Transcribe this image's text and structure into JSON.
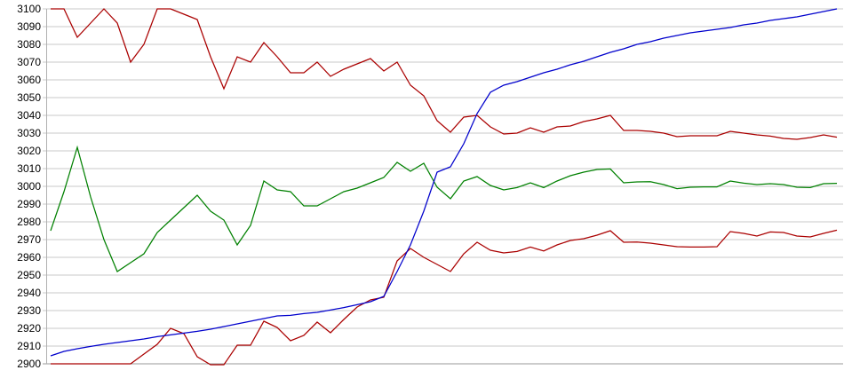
{
  "chart_data": {
    "type": "line",
    "title": "",
    "legend": "none",
    "background": "#ffffff",
    "grid": {
      "horizontal": true,
      "vertical": false,
      "color": "#c9c9c9",
      "axis_color": "#b0b0b0",
      "baseline_color": "#999999"
    },
    "x_axis": {
      "labels_visible": false,
      "points": 60
    },
    "y_axis": {
      "min": 2900,
      "max": 3100,
      "tick_step": 10,
      "tick_labels": [
        "3100",
        "3090",
        "3080",
        "3070",
        "3060",
        "3050",
        "3040",
        "3030",
        "3020",
        "3010",
        "3000",
        "2990",
        "2980",
        "2970",
        "2960",
        "2950",
        "2940",
        "2930",
        "2920",
        "2910",
        "2900"
      ]
    },
    "series": [
      {
        "name": "upper-band-red",
        "color": "#aa0000",
        "values": [
          3100,
          3100,
          3084,
          3092,
          3100,
          3092,
          3070,
          3080,
          3100,
          3100,
          3097,
          3094,
          3073,
          3055,
          3073,
          3070,
          3081,
          3073,
          3064,
          3064,
          3070,
          3062,
          3066,
          3069,
          3072,
          3065,
          3070,
          3057,
          3051,
          3037,
          3030.5,
          3039,
          3040,
          3033.5,
          3029.5,
          3030,
          3033,
          3030.5,
          3033.5,
          3034,
          3036.5,
          3038,
          3040,
          3031.5,
          3031.5,
          3031,
          3030,
          3028,
          3028.5,
          3028.5,
          3028.5,
          3031,
          3030,
          3029,
          3028.3,
          3027,
          3026.5,
          3027.5,
          3029,
          3027.7
        ]
      },
      {
        "name": "middle-green",
        "color": "#008000",
        "values": [
          2975,
          2997,
          3022,
          2994,
          2970,
          2952,
          2957,
          2962,
          2974,
          2981,
          2988,
          2995,
          2986,
          2981,
          2967,
          2978,
          3003,
          2998,
          2997,
          2989,
          2989,
          2993,
          2997,
          2999,
          3002,
          3005,
          3013.5,
          3008.5,
          3013,
          2999.5,
          2993,
          3003,
          3005.5,
          3000.5,
          2998,
          2999.3,
          3002,
          2999.3,
          3003,
          3006,
          3008,
          3009.5,
          3009.8,
          3002,
          3002.5,
          3002.6,
          3001,
          2998.7,
          2999.5,
          2999.7,
          2999.7,
          3003,
          3001.8,
          3001,
          3001.5,
          3001,
          2999.5,
          2999.3,
          3001.5,
          3001.7
        ]
      },
      {
        "name": "lower-band-red",
        "color": "#aa0000",
        "values": [
          2900,
          2900,
          2900,
          2900,
          2900,
          2900,
          2900,
          2905.5,
          2911,
          2920,
          2917,
          2904,
          2899.5,
          2899.5,
          2910.5,
          2910.5,
          2924,
          2920.5,
          2913,
          2916,
          2923.5,
          2917.5,
          2925,
          2932,
          2936,
          2937.5,
          2958,
          2965,
          2960,
          2956,
          2952,
          2962,
          2968.5,
          2964,
          2962.5,
          2963.3,
          2965.8,
          2963.6,
          2967,
          2969.5,
          2970.5,
          2972.5,
          2975,
          2968.5,
          2968.6,
          2968,
          2967,
          2966,
          2965.8,
          2965.8,
          2966,
          2974.5,
          2973.5,
          2972,
          2974.3,
          2974,
          2972,
          2971.5,
          2973.5,
          2975.3
        ]
      },
      {
        "name": "cumulative-blue",
        "color": "#0000cc",
        "values": [
          2904.5,
          2907,
          2908.5,
          2909.8,
          2911,
          2912,
          2913,
          2914,
          2915.3,
          2916.3,
          2917.3,
          2918.3,
          2919.5,
          2921,
          2922.5,
          2924,
          2925.5,
          2927,
          2927.3,
          2928.3,
          2929,
          2930.3,
          2931.7,
          2933.3,
          2935,
          2938,
          2952,
          2967,
          2986,
          3008,
          3011,
          3024,
          3041,
          3053,
          3057,
          3059,
          3061.5,
          3064,
          3066,
          3068.5,
          3070.5,
          3073,
          3075.5,
          3077.5,
          3080,
          3081.5,
          3083.5,
          3085,
          3086.5,
          3087.5,
          3088.5,
          3089.5,
          3091,
          3092,
          3093.5,
          3094.5,
          3095.5,
          3097,
          3098.5,
          3100
        ]
      }
    ]
  }
}
